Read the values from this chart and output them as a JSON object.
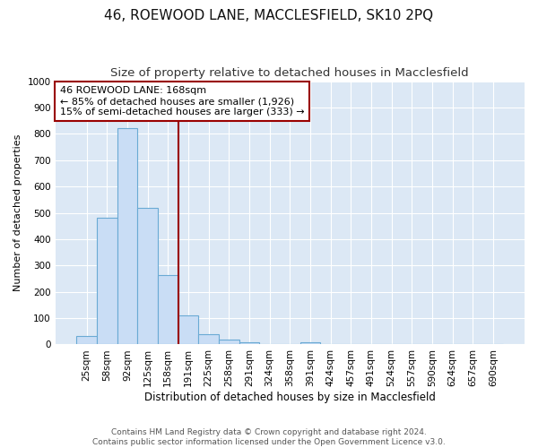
{
  "title1": "46, ROEWOOD LANE, MACCLESFIELD, SK10 2PQ",
  "title2": "Size of property relative to detached houses in Macclesfield",
  "xlabel": "Distribution of detached houses by size in Macclesfield",
  "ylabel": "Number of detached properties",
  "categories": [
    "25sqm",
    "58sqm",
    "92sqm",
    "125sqm",
    "158sqm",
    "191sqm",
    "225sqm",
    "258sqm",
    "291sqm",
    "324sqm",
    "358sqm",
    "391sqm",
    "424sqm",
    "457sqm",
    "491sqm",
    "524sqm",
    "557sqm",
    "590sqm",
    "624sqm",
    "657sqm",
    "690sqm"
  ],
  "values": [
    33,
    480,
    820,
    520,
    265,
    110,
    40,
    20,
    10,
    0,
    0,
    10,
    0,
    0,
    0,
    0,
    0,
    0,
    0,
    0,
    0
  ],
  "bar_color": "#c9ddf5",
  "bar_edge_color": "#6aaad4",
  "red_line_x": 4.5,
  "ylim": [
    0,
    1000
  ],
  "yticks": [
    0,
    100,
    200,
    300,
    400,
    500,
    600,
    700,
    800,
    900,
    1000
  ],
  "annotation_line1": "46 ROEWOOD LANE: 168sqm",
  "annotation_line2": "← 85% of detached houses are smaller (1,926)",
  "annotation_line3": "15% of semi-detached houses are larger (333) →",
  "footer1": "Contains HM Land Registry data © Crown copyright and database right 2024.",
  "footer2": "Contains public sector information licensed under the Open Government Licence v3.0.",
  "fig_bg_color": "#ffffff",
  "plot_bg_color": "#dce8f5",
  "grid_color": "#ffffff",
  "title1_fontsize": 11,
  "title2_fontsize": 9.5,
  "xlabel_fontsize": 8.5,
  "ylabel_fontsize": 8,
  "tick_fontsize": 7.5,
  "footer_fontsize": 6.5,
  "ann_fontsize": 8
}
